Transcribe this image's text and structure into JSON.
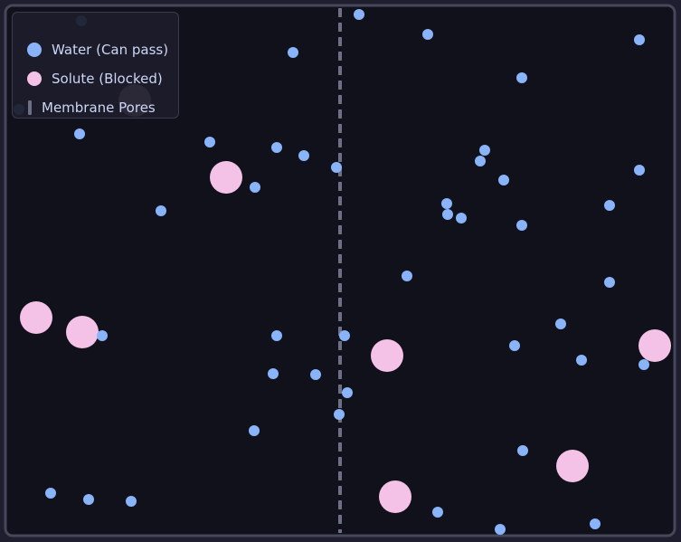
{
  "colors": {
    "page_background": "#1e1e2e",
    "container_background": "#11111b",
    "container_border": "#45475a",
    "water": "#89b4fa",
    "solute": "#f5c2e7",
    "membrane": "#6c7086"
  },
  "legend": {
    "water_label": "Water (Can pass)",
    "solute_label": "Solute (Blocked)",
    "membrane_label": "Membrane Pores"
  },
  "particle_counts": {
    "water": 47,
    "solute": 8
  }
}
